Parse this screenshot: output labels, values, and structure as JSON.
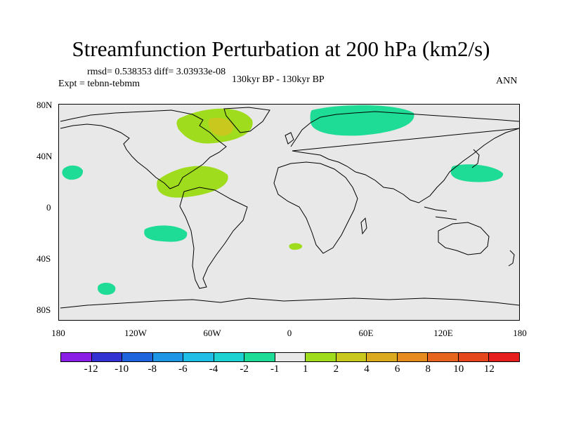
{
  "figure": {
    "title": "Streamfunction Perturbation at 200 hPa (km2/s)",
    "stats": "rmsd= 0.538353 diff= 3.03933e-08",
    "experiment": "Expt = tebnn-tebmm",
    "period": "130kyr BP - 130kyr BP",
    "season": "ANN"
  },
  "map_axes": {
    "x_ticks": [
      "180",
      "120W",
      "60W",
      "0",
      "60E",
      "120E",
      "180"
    ],
    "y_ticks": [
      "80N",
      "40N",
      "0",
      "40S",
      "80S"
    ]
  },
  "colorbar": {
    "colors": [
      "#8a1ee6",
      "#3232d2",
      "#1e64dc",
      "#1e96e6",
      "#1ebee6",
      "#1ed2d2",
      "#1edc96",
      "#e8e8e8",
      "#a0dc1e",
      "#c8c81e",
      "#dcaa1e",
      "#e68c1e",
      "#e6641e",
      "#e6461e",
      "#e61e1e"
    ],
    "labels": [
      "-12",
      "-10",
      "-8",
      "-6",
      "-4",
      "-2",
      "-1",
      "1",
      "2",
      "4",
      "6",
      "8",
      "10",
      "12"
    ]
  },
  "contour_regions": [
    {
      "name": "north-america-high",
      "level": "2",
      "color": "#a0dc1e"
    },
    {
      "name": "north-america-core",
      "level": "4",
      "color": "#c8c81e"
    },
    {
      "name": "caribbean-high",
      "level": "2",
      "color": "#a0dc1e"
    },
    {
      "name": "siberia-low",
      "level": "-1",
      "color": "#1edc96"
    },
    {
      "name": "north-pacific-low",
      "level": "-1",
      "color": "#1edc96"
    },
    {
      "name": "hawaii-low",
      "level": "-1",
      "color": "#1edc96"
    },
    {
      "name": "south-pacific-low",
      "level": "-1",
      "color": "#1edc96"
    },
    {
      "name": "southern-ocean-low",
      "level": "-1",
      "color": "#1edc96"
    },
    {
      "name": "south-atlantic-high",
      "level": "2",
      "color": "#a0dc1e"
    }
  ]
}
